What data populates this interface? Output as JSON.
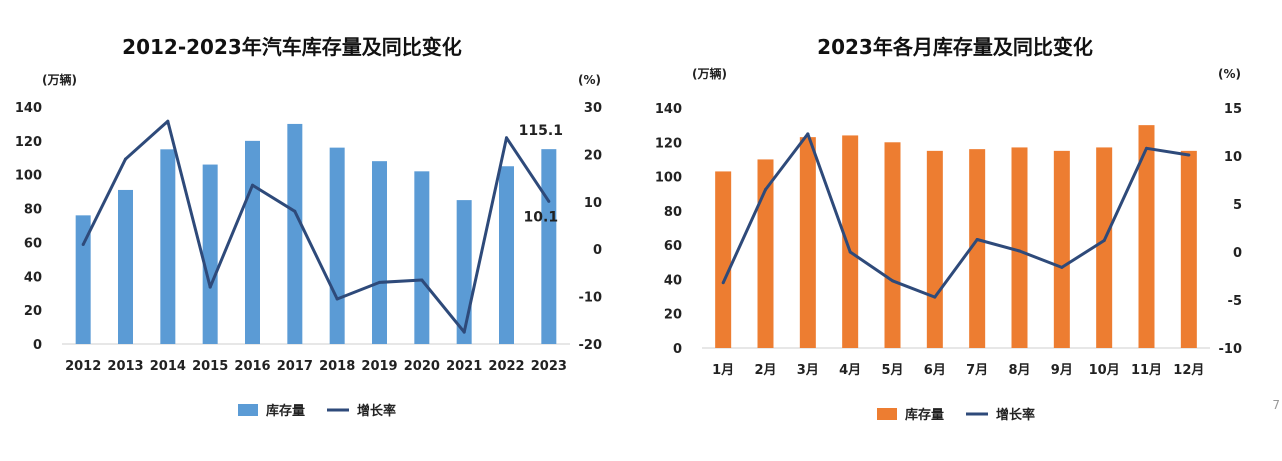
{
  "page_number": "7",
  "chart_data": [
    {
      "type": "bar",
      "title": "2012-2023年汽车库存量及同比变化",
      "ylabel": "(万辆)",
      "y2label": "(%)",
      "categories": [
        "2012",
        "2013",
        "2014",
        "2015",
        "2016",
        "2017",
        "2018",
        "2019",
        "2020",
        "2021",
        "2022",
        "2023"
      ],
      "ylim": [
        0,
        140
      ],
      "y2lim": [
        -20,
        30
      ],
      "yticks": [
        0,
        20,
        40,
        60,
        80,
        100,
        120,
        140
      ],
      "y2ticks": [
        -20,
        -10,
        0,
        10,
        20,
        30
      ],
      "series": [
        {
          "name": "库存量",
          "kind": "bar",
          "axis": "left",
          "color": "#5b9bd5",
          "values": [
            76,
            91,
            115,
            106,
            120,
            130,
            116,
            108,
            102,
            85,
            105,
            115.1
          ]
        },
        {
          "name": "增长率",
          "kind": "line",
          "axis": "right",
          "color": "#2e4a7a",
          "values": [
            1,
            19,
            27,
            -8,
            13.5,
            8,
            -10.5,
            -7,
            -6.5,
            -17.5,
            23.5,
            10.1
          ]
        }
      ],
      "annotations": [
        {
          "text": "115.1",
          "series": 0,
          "index": 11
        },
        {
          "text": "10.1",
          "series": 1,
          "index": 11
        }
      ],
      "legend": {
        "position": "bottom-center"
      }
    },
    {
      "type": "bar",
      "title": "2023年各月库存量及同比变化",
      "ylabel": "(万辆)",
      "y2label": "(%)",
      "categories": [
        "1月",
        "2月",
        "3月",
        "4月",
        "5月",
        "6月",
        "7月",
        "8月",
        "9月",
        "10月",
        "11月",
        "12月"
      ],
      "ylim": [
        0,
        140
      ],
      "y2lim": [
        -10,
        15
      ],
      "yticks": [
        0,
        20,
        40,
        60,
        80,
        100,
        120,
        140
      ],
      "y2ticks": [
        -10,
        -5,
        0,
        5,
        10,
        15
      ],
      "series": [
        {
          "name": "库存量",
          "kind": "bar",
          "axis": "left",
          "color": "#ed7d31",
          "values": [
            103,
            110,
            123,
            124,
            120,
            115,
            116,
            117,
            115,
            117,
            130,
            115
          ]
        },
        {
          "name": "增长率",
          "kind": "line",
          "axis": "right",
          "color": "#2e4a7a",
          "values": [
            -3.2,
            6.5,
            12.3,
            0,
            -3,
            -4.7,
            1.3,
            0.1,
            -1.6,
            1.2,
            10.8,
            10.1
          ]
        }
      ],
      "annotations": [],
      "legend": {
        "position": "bottom-center"
      }
    }
  ]
}
